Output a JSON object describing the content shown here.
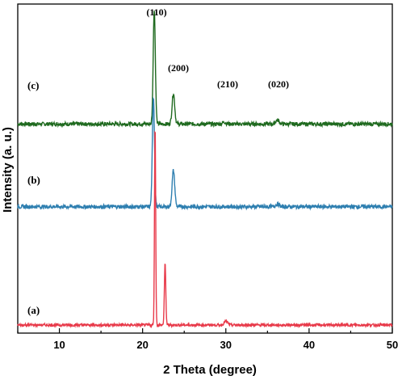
{
  "chart_data": {
    "type": "line",
    "title": "",
    "xlabel": "2 Theta (degree)",
    "ylabel": "Intensity (a. u.)",
    "xlim": [
      5,
      50
    ],
    "xticks": [
      10,
      20,
      30,
      40,
      50
    ],
    "grid": false,
    "legend": "none",
    "series": [
      {
        "name": "(c)",
        "color": "#1f6a1f",
        "baseline": 0.63,
        "noise": 0.006,
        "peaks": [
          {
            "x": 21.4,
            "height": 0.355,
            "width": 0.18
          },
          {
            "x": 23.7,
            "height": 0.095,
            "width": 0.22
          },
          {
            "x": 29.8,
            "height": 0.006,
            "width": 0.3
          },
          {
            "x": 36.2,
            "height": 0.012,
            "width": 0.3
          }
        ]
      },
      {
        "name": "(b)",
        "color": "#2e7fb0",
        "baseline": 0.375,
        "noise": 0.006,
        "peaks": [
          {
            "x": 21.3,
            "height": 0.34,
            "width": 0.18
          },
          {
            "x": 23.7,
            "height": 0.112,
            "width": 0.22
          },
          {
            "x": 36.2,
            "height": 0.008,
            "width": 0.3
          }
        ]
      },
      {
        "name": "(a)",
        "color": "#e83a4a",
        "baseline": 0.01,
        "noise": 0.004,
        "peaks": [
          {
            "x": 21.5,
            "height": 0.62,
            "width": 0.1
          },
          {
            "x": 22.7,
            "height": 0.19,
            "width": 0.12
          },
          {
            "x": 30.0,
            "height": 0.012,
            "width": 0.3
          }
        ]
      }
    ],
    "annotations": [
      "(110)",
      "(200)",
      "(210)",
      "(020)"
    ]
  }
}
